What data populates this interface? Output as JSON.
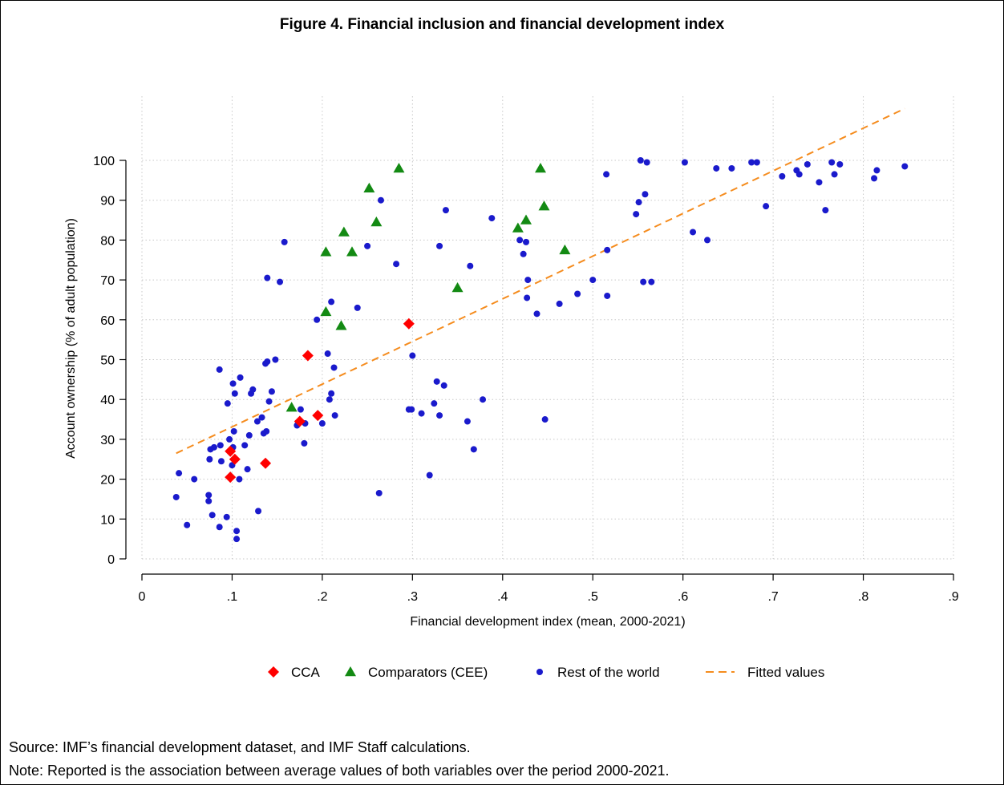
{
  "figure": {
    "title": "Figure 4. Financial inclusion and financial development index",
    "source": "Source: IMF’s financial development dataset, and IMF Staff calculations.",
    "note": "Note: Reported is the association between average values of both variables over the period 2000-2021."
  },
  "colors": {
    "cca": "#ff0000",
    "cee": "#138a13",
    "rest": "#1a1acc",
    "fit": "#f58c1e",
    "grid": "#c8c8c8"
  },
  "chart_data": {
    "type": "scatter",
    "xlabel": "Financial development index (mean, 2000-2021)",
    "ylabel": "Account ownership (% of adult population)",
    "xlim": [
      0,
      0.9
    ],
    "ylim": [
      0,
      100
    ],
    "xticks": [
      0,
      0.1,
      0.2,
      0.3,
      0.4,
      0.5,
      0.6,
      0.7,
      0.8,
      0.9
    ],
    "xtick_labels": [
      "0",
      ".1",
      ".2",
      ".3",
      ".4",
      ".5",
      ".6",
      ".7",
      ".8",
      ".9"
    ],
    "yticks": [
      0,
      10,
      20,
      30,
      40,
      50,
      60,
      70,
      80,
      90,
      100
    ],
    "ytick_labels": [
      "0",
      "10",
      "20",
      "30",
      "40",
      "50",
      "60",
      "70",
      "80",
      "90",
      "100"
    ],
    "grid": true,
    "legend_position": "bottom",
    "legend": [
      "CCA",
      "Comparators (CEE)",
      "Rest of the world",
      "Fitted values"
    ],
    "series": [
      {
        "name": "CCA",
        "marker": "diamond",
        "points": [
          [
            0.098,
            27
          ],
          [
            0.103,
            25
          ],
          [
            0.098,
            20.5
          ],
          [
            0.137,
            24
          ],
          [
            0.175,
            34.5
          ],
          [
            0.195,
            36
          ],
          [
            0.184,
            51
          ],
          [
            0.296,
            59
          ]
        ]
      },
      {
        "name": "Comparators (CEE)",
        "marker": "triangle",
        "points": [
          [
            0.166,
            38
          ],
          [
            0.204,
            62
          ],
          [
            0.221,
            58.5
          ],
          [
            0.204,
            77
          ],
          [
            0.224,
            82
          ],
          [
            0.233,
            77
          ],
          [
            0.252,
            93
          ],
          [
            0.26,
            84.5
          ],
          [
            0.285,
            98
          ],
          [
            0.35,
            68
          ],
          [
            0.417,
            83
          ],
          [
            0.426,
            85
          ],
          [
            0.442,
            98
          ],
          [
            0.446,
            88.5
          ],
          [
            0.469,
            77.5
          ]
        ]
      },
      {
        "name": "Rest of the world",
        "marker": "circle",
        "points": [
          [
            0.038,
            15.5
          ],
          [
            0.041,
            21.5
          ],
          [
            0.05,
            8.5
          ],
          [
            0.058,
            20
          ],
          [
            0.074,
            14.5
          ],
          [
            0.074,
            16
          ],
          [
            0.075,
            25
          ],
          [
            0.076,
            27.5
          ],
          [
            0.078,
            11
          ],
          [
            0.08,
            28
          ],
          [
            0.086,
            8
          ],
          [
            0.087,
            28.5
          ],
          [
            0.088,
            24.5
          ],
          [
            0.086,
            47.5
          ],
          [
            0.094,
            10.5
          ],
          [
            0.095,
            39
          ],
          [
            0.097,
            30
          ],
          [
            0.1,
            23.5
          ],
          [
            0.101,
            28
          ],
          [
            0.101,
            44
          ],
          [
            0.102,
            32
          ],
          [
            0.103,
            41.5
          ],
          [
            0.105,
            7
          ],
          [
            0.105,
            5
          ],
          [
            0.108,
            20
          ],
          [
            0.109,
            45.5
          ],
          [
            0.114,
            28.5
          ],
          [
            0.117,
            22.5
          ],
          [
            0.119,
            31
          ],
          [
            0.121,
            41.5
          ],
          [
            0.123,
            42.5
          ],
          [
            0.128,
            34.5
          ],
          [
            0.129,
            12
          ],
          [
            0.133,
            35.5
          ],
          [
            0.135,
            31.5
          ],
          [
            0.137,
            49
          ],
          [
            0.138,
            32
          ],
          [
            0.139,
            70.5
          ],
          [
            0.139,
            49.5
          ],
          [
            0.141,
            39.5
          ],
          [
            0.144,
            42
          ],
          [
            0.148,
            50
          ],
          [
            0.153,
            69.5
          ],
          [
            0.158,
            79.5
          ],
          [
            0.172,
            33.5
          ],
          [
            0.176,
            37.5
          ],
          [
            0.18,
            29
          ],
          [
            0.181,
            34
          ],
          [
            0.194,
            60
          ],
          [
            0.2,
            34
          ],
          [
            0.206,
            51.5
          ],
          [
            0.208,
            40
          ],
          [
            0.21,
            41.5
          ],
          [
            0.21,
            64.5
          ],
          [
            0.213,
            48
          ],
          [
            0.214,
            36
          ],
          [
            0.239,
            63
          ],
          [
            0.25,
            78.5
          ],
          [
            0.263,
            16.5
          ],
          [
            0.265,
            90
          ],
          [
            0.282,
            74
          ],
          [
            0.296,
            37.5
          ],
          [
            0.299,
            37.5
          ],
          [
            0.3,
            51
          ],
          [
            0.31,
            36.5
          ],
          [
            0.319,
            21
          ],
          [
            0.324,
            39
          ],
          [
            0.327,
            44.5
          ],
          [
            0.33,
            36
          ],
          [
            0.33,
            78.5
          ],
          [
            0.335,
            43.5
          ],
          [
            0.337,
            87.5
          ],
          [
            0.361,
            34.5
          ],
          [
            0.364,
            73.5
          ],
          [
            0.368,
            27.5
          ],
          [
            0.378,
            40
          ],
          [
            0.388,
            85.5
          ],
          [
            0.419,
            80
          ],
          [
            0.423,
            76.5
          ],
          [
            0.426,
            79.5
          ],
          [
            0.427,
            65.5
          ],
          [
            0.428,
            70
          ],
          [
            0.438,
            61.5
          ],
          [
            0.447,
            35
          ],
          [
            0.463,
            64
          ],
          [
            0.483,
            66.5
          ],
          [
            0.5,
            70
          ],
          [
            0.515,
            96.5
          ],
          [
            0.516,
            66
          ],
          [
            0.516,
            77.5
          ],
          [
            0.548,
            86.5
          ],
          [
            0.551,
            89.5
          ],
          [
            0.553,
            100
          ],
          [
            0.556,
            69.5
          ],
          [
            0.558,
            91.5
          ],
          [
            0.56,
            99.5
          ],
          [
            0.565,
            69.5
          ],
          [
            0.602,
            99.5
          ],
          [
            0.611,
            82
          ],
          [
            0.627,
            80
          ],
          [
            0.637,
            98
          ],
          [
            0.654,
            98
          ],
          [
            0.676,
            99.5
          ],
          [
            0.682,
            99.5
          ],
          [
            0.692,
            88.5
          ],
          [
            0.71,
            96
          ],
          [
            0.726,
            97.5
          ],
          [
            0.729,
            96.5
          ],
          [
            0.738,
            99
          ],
          [
            0.751,
            94.5
          ],
          [
            0.758,
            87.5
          ],
          [
            0.765,
            99.5
          ],
          [
            0.768,
            96.5
          ],
          [
            0.774,
            99
          ],
          [
            0.812,
            95.5
          ],
          [
            0.815,
            97.5
          ],
          [
            0.846,
            98.5
          ]
        ]
      },
      {
        "name": "Fitted values",
        "type": "line",
        "style": "dashed",
        "points": [
          [
            0.038,
            26.5
          ],
          [
            0.846,
            113
          ]
        ]
      }
    ]
  }
}
